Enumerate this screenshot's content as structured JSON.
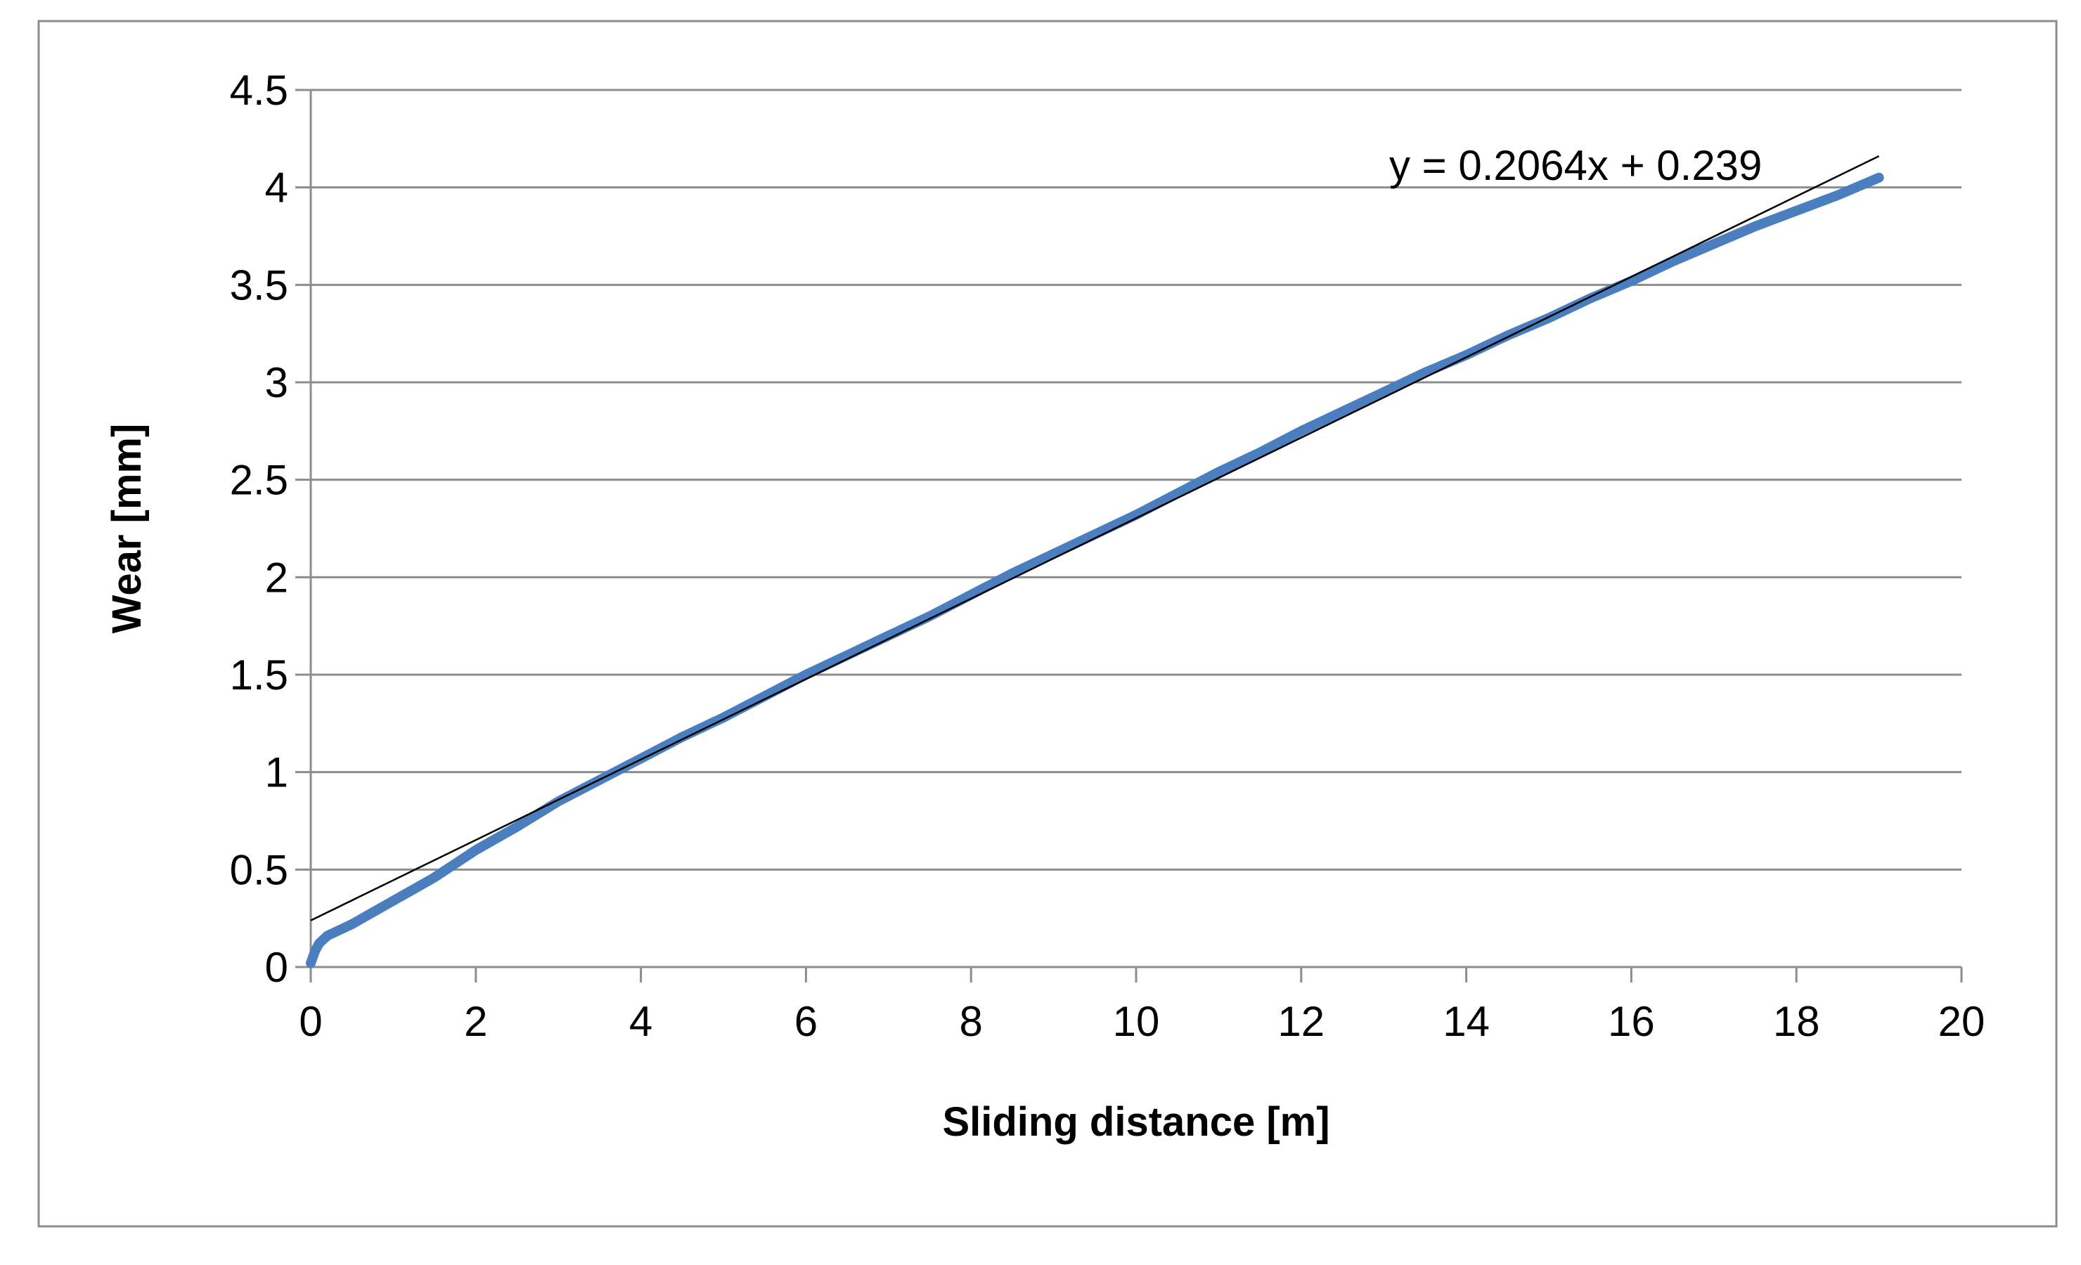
{
  "chart_data": {
    "type": "line",
    "title": "",
    "xlabel": "Sliding distance [m]",
    "ylabel": "Wear [mm]",
    "xlim": [
      0,
      20
    ],
    "ylim": [
      0,
      4.5
    ],
    "x_ticks": [
      "0",
      "2",
      "4",
      "6",
      "8",
      "10",
      "12",
      "14",
      "16",
      "18",
      "20"
    ],
    "y_ticks": [
      "0",
      "0.5",
      "1",
      "1.5",
      "2",
      "2.5",
      "3",
      "3.5",
      "4",
      "4.5"
    ],
    "grid": "horizontal",
    "legend": "none",
    "series": [
      {
        "color": "#4a7ebf",
        "x": [
          0,
          0.05,
          0.1,
          0.2,
          0.3,
          0.5,
          0.75,
          1,
          1.25,
          1.5,
          2,
          2.5,
          3,
          3.5,
          4,
          4.5,
          5,
          5.5,
          6,
          6.5,
          7,
          7.5,
          8,
          8.5,
          9,
          9.5,
          10,
          10.5,
          11,
          11.5,
          12,
          12.5,
          13,
          13.5,
          14,
          14.5,
          15,
          15.5,
          16,
          16.5,
          17,
          17.5,
          18,
          18.5,
          19
        ],
        "y": [
          0.02,
          0.08,
          0.12,
          0.16,
          0.18,
          0.22,
          0.28,
          0.34,
          0.4,
          0.46,
          0.6,
          0.72,
          0.85,
          0.96,
          1.07,
          1.18,
          1.28,
          1.39,
          1.5,
          1.6,
          1.7,
          1.8,
          1.91,
          2.02,
          2.12,
          2.22,
          2.32,
          2.43,
          2.54,
          2.64,
          2.75,
          2.85,
          2.95,
          3.05,
          3.14,
          3.24,
          3.33,
          3.43,
          3.52,
          3.62,
          3.71,
          3.8,
          3.88,
          3.96,
          4.05
        ]
      }
    ],
    "trendline": {
      "slope": 0.2064,
      "intercept": 0.239,
      "x_range": [
        0,
        19
      ],
      "color": "#000000",
      "equation_label": "y = 0.2064x + 0.239"
    }
  }
}
